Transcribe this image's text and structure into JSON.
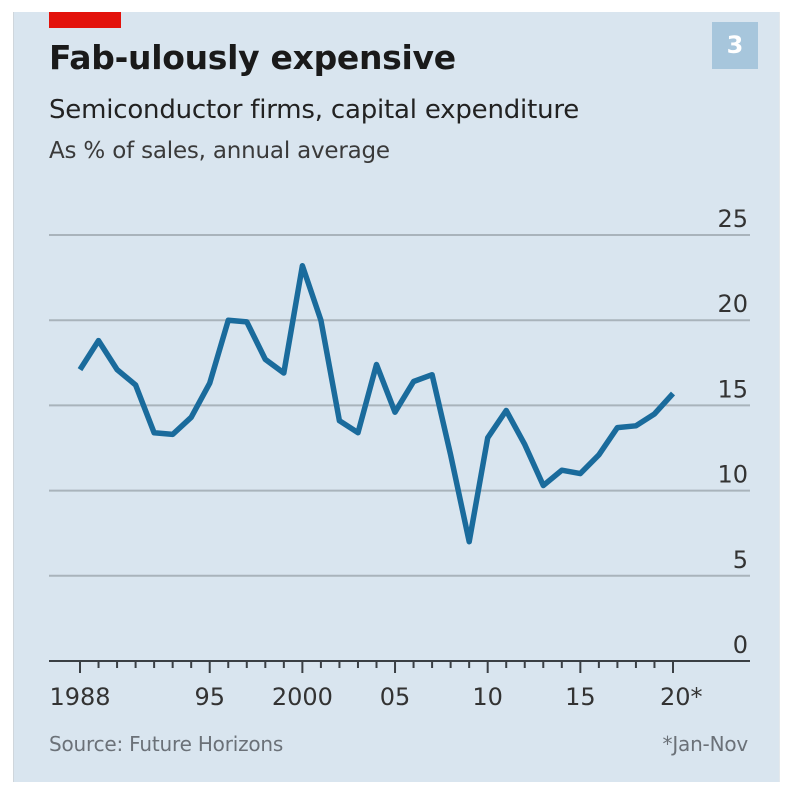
{
  "header": {
    "title": "Fab-ulously expensive",
    "subtitle": "Semiconductor firms, capital expenditure",
    "unit": "As % of sales, annual average",
    "chart_number": "3"
  },
  "footer": {
    "source": "Source: Future Horizons",
    "note": "*Jan-Nov"
  },
  "colors": {
    "accent_red": "#e3120b",
    "line": "#1a6b9c",
    "background": "#d9e5ef",
    "badge": "#a7c6dc"
  },
  "chart_data": {
    "type": "line",
    "title": "Fab-ulously expensive",
    "subtitle": "Semiconductor firms, capital expenditure",
    "ylabel": "As % of sales, annual average",
    "xlabel": "",
    "ylim": [
      0,
      25
    ],
    "xlim": [
      1988,
      2020
    ],
    "grid": true,
    "yaxis_position": "right",
    "y_ticks": [
      0,
      5,
      10,
      15,
      20,
      25
    ],
    "x_ticks": [
      {
        "value": 1988,
        "label": "1988"
      },
      {
        "value": 1995,
        "label": "95"
      },
      {
        "value": 2000,
        "label": "2000"
      },
      {
        "value": 2005,
        "label": "05"
      },
      {
        "value": 2010,
        "label": "10"
      },
      {
        "value": 2015,
        "label": "15"
      },
      {
        "value": 2020,
        "label": "20*"
      }
    ],
    "x": [
      1988,
      1989,
      1990,
      1991,
      1992,
      1993,
      1994,
      1995,
      1996,
      1997,
      1998,
      1999,
      2000,
      2001,
      2002,
      2003,
      2004,
      2005,
      2006,
      2007,
      2008,
      2009,
      2010,
      2011,
      2012,
      2013,
      2014,
      2015,
      2016,
      2017,
      2018,
      2019,
      2020
    ],
    "series": [
      {
        "name": "Capital expenditure, % of sales",
        "values": [
          17.1,
          18.8,
          17.1,
          16.2,
          13.4,
          13.3,
          14.3,
          16.3,
          20.0,
          19.9,
          17.7,
          16.9,
          23.2,
          20.0,
          14.1,
          13.4,
          17.4,
          14.6,
          16.4,
          16.8,
          12.1,
          7.0,
          13.1,
          14.7,
          12.7,
          10.3,
          11.2,
          11.0,
          12.1,
          13.7,
          13.8,
          14.5,
          15.7
        ]
      }
    ],
    "annotations": [
      "*Jan-Nov"
    ],
    "source": "Source: Future Horizons"
  }
}
